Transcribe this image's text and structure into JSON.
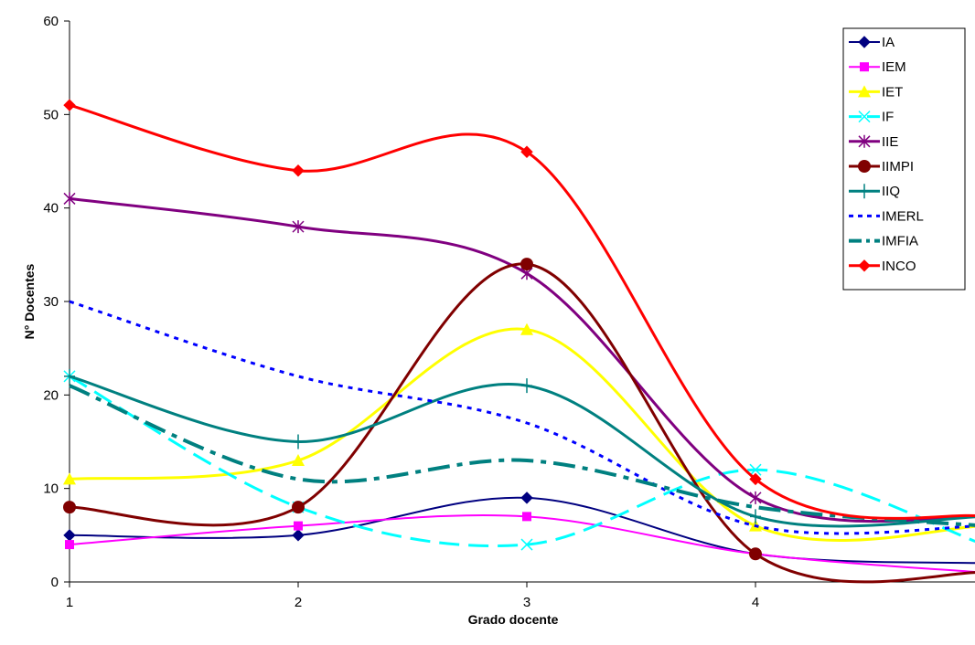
{
  "chart_data": {
    "type": "line",
    "xlabel": "Grado docente",
    "ylabel": "N° Docentes",
    "x": [
      1,
      2,
      3,
      4,
      5
    ],
    "x_tick_labels": [
      "1",
      "2",
      "3",
      "4"
    ],
    "xlim": [
      1,
      4.96
    ],
    "ylim": [
      0,
      60
    ],
    "y_ticks": [
      0,
      10,
      20,
      30,
      40,
      50,
      60
    ],
    "smooth": true,
    "grid": false,
    "legend_position": "top-right",
    "series": [
      {
        "name": "IA",
        "values": [
          5,
          5,
          9,
          3,
          2
        ],
        "color": "#000080",
        "marker": "diamond",
        "dash": "solid",
        "width": 2
      },
      {
        "name": "IEM",
        "values": [
          4,
          6,
          7,
          3,
          1
        ],
        "color": "#ff00ff",
        "marker": "square",
        "dash": "solid",
        "width": 2
      },
      {
        "name": "IET",
        "values": [
          11,
          13,
          27,
          6,
          6
        ],
        "color": "#ffff00",
        "marker": "triangle",
        "dash": "solid",
        "width": 3
      },
      {
        "name": "IF",
        "values": [
          22,
          8,
          4,
          12,
          4
        ],
        "color": "#00ffff",
        "marker": "x",
        "dash": "dash",
        "width": 3
      },
      {
        "name": "IIE",
        "values": [
          41,
          38,
          33,
          9,
          7
        ],
        "color": "#800080",
        "marker": "star",
        "dash": "solid",
        "width": 3
      },
      {
        "name": "IIMPI",
        "values": [
          8,
          8,
          34,
          3,
          1
        ],
        "color": "#800000",
        "marker": "circle",
        "dash": "solid",
        "width": 3
      },
      {
        "name": "IIQ",
        "values": [
          22,
          15,
          21,
          7,
          7
        ],
        "color": "#008080",
        "marker": "plus",
        "dash": "solid",
        "width": 3
      },
      {
        "name": "IMERL",
        "values": [
          30,
          22,
          17,
          6,
          6
        ],
        "color": "#0000ff",
        "marker": "none",
        "dash": "dot",
        "width": 3
      },
      {
        "name": "IMFIA",
        "values": [
          21,
          11,
          13,
          8,
          6
        ],
        "color": "#008080",
        "marker": "none",
        "dash": "dashdot",
        "width": 4
      },
      {
        "name": "INCO",
        "values": [
          51,
          44,
          46,
          11,
          7
        ],
        "color": "#ff0000",
        "marker": "diamond",
        "dash": "solid",
        "width": 3
      }
    ]
  }
}
